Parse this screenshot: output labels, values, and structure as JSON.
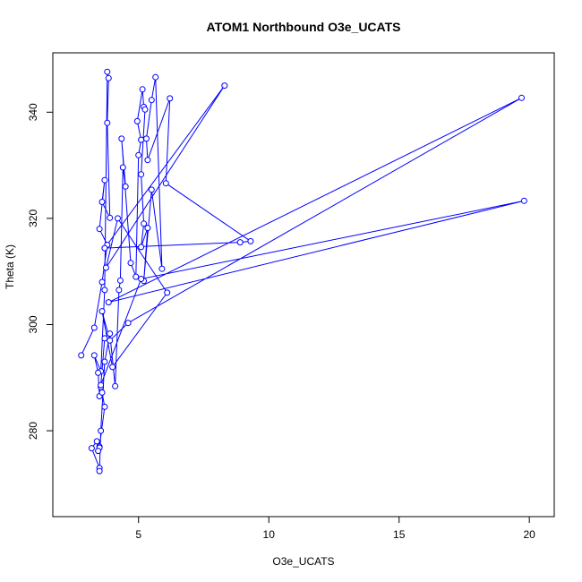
{
  "chart_data": {
    "type": "scatter",
    "title": "ATOM1 Northbound O3e_UCATS",
    "xlabel": "O3e_UCATS",
    "ylabel": "Theta (K)",
    "xlim": [
      2.5,
      20.2
    ],
    "ylim": [
      265,
      350
    ],
    "xticks": [
      5,
      10,
      15,
      20
    ],
    "yticks": [
      280,
      300,
      320,
      340
    ],
    "grid": false,
    "legend": "none",
    "series": [
      {
        "color": "#0000ff",
        "marker": "open-circle",
        "connected": true,
        "points": [
          [
            2.8,
            294.2
          ],
          [
            3.3,
            299.4
          ],
          [
            3.6,
            308.0
          ],
          [
            3.8,
            315.0
          ],
          [
            3.5,
            318.0
          ],
          [
            3.7,
            327.2
          ],
          [
            3.6,
            323.1
          ],
          [
            3.9,
            320.1
          ],
          [
            3.8,
            338.0
          ],
          [
            3.85,
            346.4
          ],
          [
            3.8,
            347.6
          ],
          [
            3.7,
            306.5
          ],
          [
            3.55,
            291.2
          ],
          [
            3.3,
            294.2
          ],
          [
            3.45,
            290.9
          ],
          [
            3.5,
            286.5
          ],
          [
            3.55,
            288.2
          ],
          [
            3.6,
            287.2
          ],
          [
            3.7,
            284.5
          ],
          [
            3.5,
            277.0
          ],
          [
            3.5,
            276.8
          ],
          [
            3.45,
            276.2
          ],
          [
            3.4,
            278.0
          ],
          [
            3.2,
            276.7
          ],
          [
            3.5,
            273.0
          ],
          [
            3.5,
            272.4
          ],
          [
            3.55,
            280.0
          ],
          [
            3.7,
            293.0
          ],
          [
            3.9,
            298.3
          ],
          [
            4.1,
            288.4
          ],
          [
            4.25,
            306.5
          ],
          [
            4.3,
            308.3
          ],
          [
            4.4,
            329.6
          ],
          [
            4.5,
            326.0
          ],
          [
            4.35,
            335.0
          ],
          [
            4.7,
            311.6
          ],
          [
            4.9,
            309.0
          ],
          [
            5.0,
            331.9
          ],
          [
            5.1,
            334.8
          ],
          [
            4.95,
            338.3
          ],
          [
            5.15,
            344.3
          ],
          [
            5.2,
            341.0
          ],
          [
            5.25,
            340.5
          ],
          [
            5.1,
            328.3
          ],
          [
            5.2,
            319.0
          ],
          [
            5.1,
            314.6
          ],
          [
            5.35,
            318.2
          ],
          [
            5.2,
            308.2
          ],
          [
            5.5,
            325.4
          ],
          [
            5.9,
            310.5
          ],
          [
            5.65,
            346.6
          ],
          [
            5.5,
            342.3
          ],
          [
            5.3,
            335.0
          ],
          [
            5.35,
            331.0
          ],
          [
            6.2,
            342.6
          ],
          [
            6.05,
            326.6
          ],
          [
            9.3,
            315.7
          ],
          [
            8.9,
            315.5
          ],
          [
            3.7,
            314.4
          ],
          [
            8.3,
            345.0
          ],
          [
            3.75,
            310.7
          ],
          [
            4.2,
            320.0
          ],
          [
            6.1,
            306.0
          ],
          [
            4.0,
            292.0
          ],
          [
            3.6,
            302.5
          ],
          [
            3.9,
            297.0
          ],
          [
            4.6,
            300.3
          ],
          [
            19.7,
            342.7
          ],
          [
            3.85,
            304.2
          ],
          [
            19.8,
            323.3
          ],
          [
            5.1,
            308.6
          ],
          [
            3.55,
            288.6
          ],
          [
            3.7,
            297.4
          ]
        ]
      }
    ]
  }
}
